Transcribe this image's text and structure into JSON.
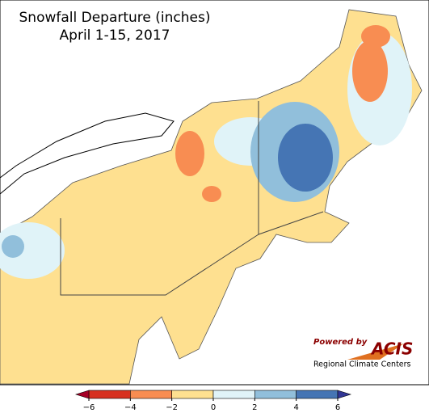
{
  "title": [
    "Snowfall Departure (inches)",
    "April 1-15, 2017"
  ],
  "logo": {
    "powered_by": "Powered by",
    "name": "ACIS",
    "caption": "Regional Climate Centers"
  },
  "colorbar": {
    "ticks": [
      {
        "value": -6,
        "label": "−6"
      },
      {
        "value": -4,
        "label": "−4"
      },
      {
        "value": -2,
        "label": "−2"
      },
      0,
      2,
      4,
      6
    ],
    "colors": [
      "#d7301f",
      "#f88d52",
      "#fee090",
      "#e0f3f8",
      "#91bfdb",
      "#4575b4"
    ],
    "under_color": "#a50026",
    "over_color": "#313695"
  }
}
